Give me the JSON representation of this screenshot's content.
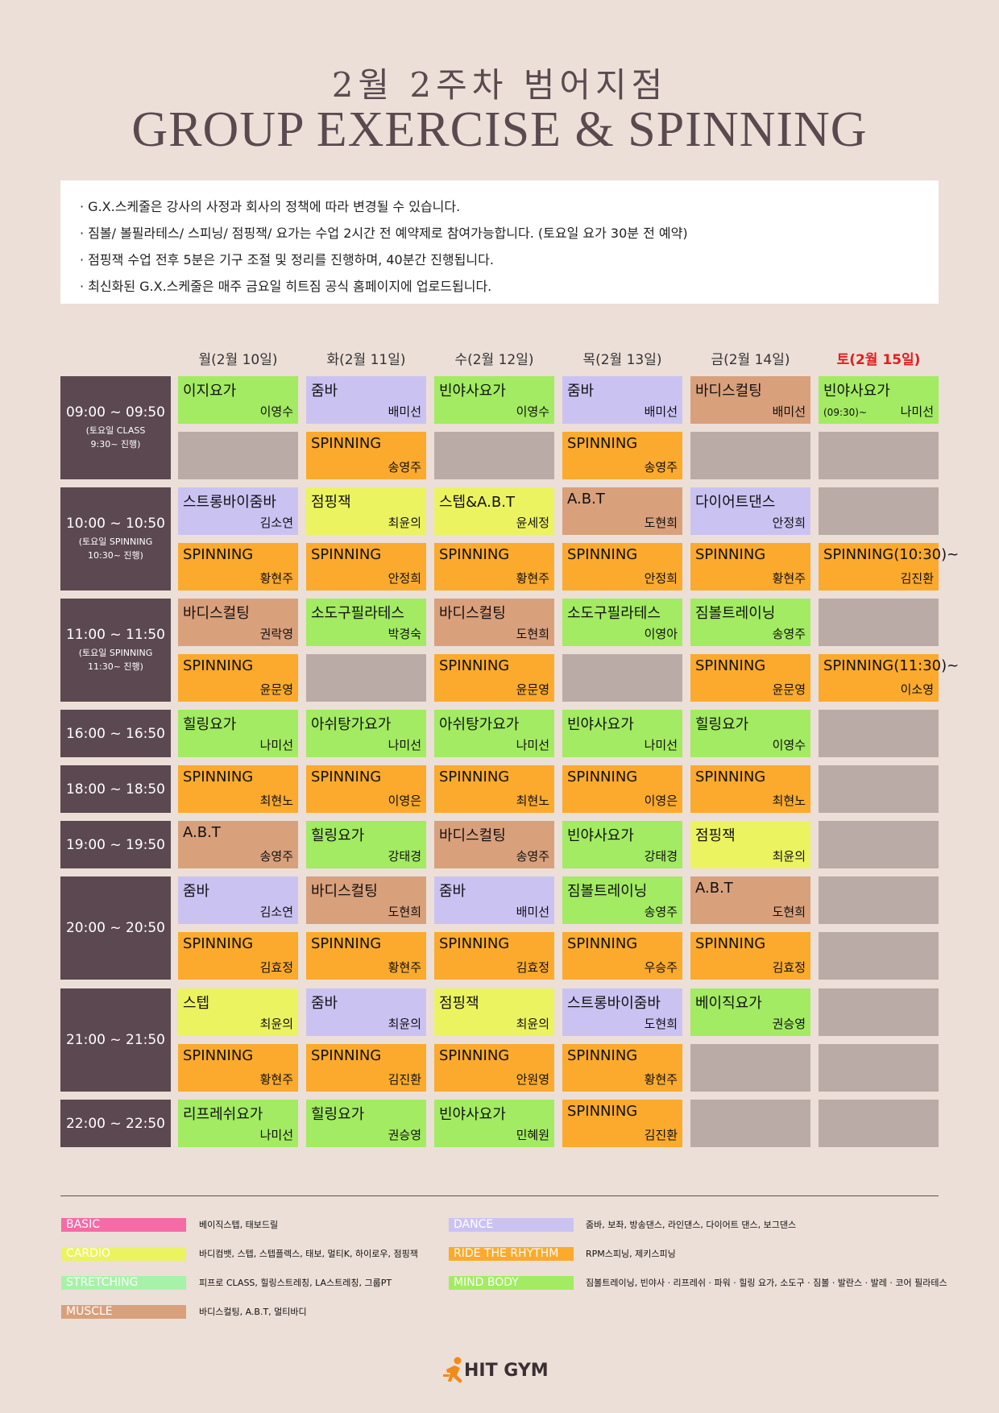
{
  "title_ko": "2월 2주차 범어지점",
  "title_en": "GROUP EXERCISE & SPINNING",
  "notices": [
    "· G.X.스케줄은 강사의 사정과 회사의 정책에 따라 변경될 수 있습니다.",
    "· 짐볼/ 볼필라테스/ 스피닝/ 점핑잭/ 요가는 수업 2시간 전 예약제로 참여가능합니다. (토요일 요가 30분 전 예약)",
    "· 점핑잭 수업 전후 5분은 기구 조절 및 정리를 진행하며, 40분간 진행됩니다.",
    "· 최신화된 G.X.스케줄은 매주 금요일 히트짐 공식 홈페이지에 업로드됩니다."
  ],
  "days": [
    "월(2월 10일)",
    "화(2월 11일)",
    "수(2월 12일)",
    "목(2월 13일)",
    "금(2월 14일)",
    "토(2월 15일)"
  ],
  "times": [
    {
      "label": "09:00 ~ 09:50",
      "note": "(토요일 CLASS\n9:30~ 진행)"
    },
    {
      "label": "10:00 ~ 10:50",
      "note": "(토요일 SPINNING\n10:30~ 진행)"
    },
    {
      "label": "11:00 ~ 11:50",
      "note": "(토요일 SPINNING\n11:30~ 진행)"
    },
    {
      "label": "16:00 ~ 16:50",
      "note": ""
    },
    {
      "label": "18:00 ~ 18:50",
      "note": ""
    },
    {
      "label": "19:00 ~ 19:50",
      "note": ""
    },
    {
      "label": "20:00 ~ 20:50",
      "note": ""
    },
    {
      "label": "21:00 ~ 21:50",
      "note": ""
    },
    {
      "label": "22:00 ~ 22:50",
      "note": ""
    }
  ],
  "schedule": [
    [
      [
        {
          "cls": "이지요가",
          "ins": "이영수",
          "cat": "mind"
        },
        {
          "cls": "줌바",
          "ins": "배미선",
          "cat": "dance"
        },
        {
          "cls": "빈야사요가",
          "ins": "이영수",
          "cat": "mind"
        },
        {
          "cls": "줌바",
          "ins": "배미선",
          "cat": "dance"
        },
        {
          "cls": "바디스컬팅",
          "ins": "배미선",
          "cat": "muscle"
        },
        {
          "cls": "빈야사요가",
          "ins": "나미선",
          "cat": "mind",
          "sub": "(09:30)~"
        }
      ],
      [
        {
          "cat": "empty"
        },
        {
          "cls": "SPINNING",
          "ins": "송영주",
          "cat": "spin"
        },
        {
          "cat": "empty"
        },
        {
          "cls": "SPINNING",
          "ins": "송영주",
          "cat": "spin"
        },
        {
          "cat": "empty"
        },
        {
          "cat": "empty"
        }
      ]
    ],
    [
      [
        {
          "cls": "스트롱바이줌바",
          "ins": "김소연",
          "cat": "dance"
        },
        {
          "cls": "점핑잭",
          "ins": "최윤의",
          "cat": "cardio"
        },
        {
          "cls": "스텝&A.B.T",
          "ins": "윤세정",
          "cat": "cardio"
        },
        {
          "cls": "A.B.T",
          "ins": "도현희",
          "cat": "muscle"
        },
        {
          "cls": "다이어트댄스",
          "ins": "안정희",
          "cat": "dance"
        },
        {
          "cat": "empty"
        }
      ],
      [
        {
          "cls": "SPINNING",
          "ins": "황현주",
          "cat": "spin"
        },
        {
          "cls": "SPINNING",
          "ins": "안정희",
          "cat": "spin"
        },
        {
          "cls": "SPINNING",
          "ins": "황현주",
          "cat": "spin"
        },
        {
          "cls": "SPINNING",
          "ins": "안정희",
          "cat": "spin"
        },
        {
          "cls": "SPINNING",
          "ins": "황현주",
          "cat": "spin"
        },
        {
          "cls": "SPINNING(10:30)~",
          "ins": "김진환",
          "cat": "spin"
        }
      ]
    ],
    [
      [
        {
          "cls": "바디스컬팅",
          "ins": "권락영",
          "cat": "muscle"
        },
        {
          "cls": "소도구필라테스",
          "ins": "박경숙",
          "cat": "mind"
        },
        {
          "cls": "바디스컬팅",
          "ins": "도현희",
          "cat": "muscle"
        },
        {
          "cls": "소도구필라테스",
          "ins": "이영아",
          "cat": "mind"
        },
        {
          "cls": "짐볼트레이닝",
          "ins": "송영주",
          "cat": "mind"
        },
        {
          "cat": "empty"
        }
      ],
      [
        {
          "cls": "SPINNING",
          "ins": "윤문영",
          "cat": "spin"
        },
        {
          "cat": "empty"
        },
        {
          "cls": "SPINNING",
          "ins": "윤문영",
          "cat": "spin"
        },
        {
          "cat": "empty"
        },
        {
          "cls": "SPINNING",
          "ins": "윤문영",
          "cat": "spin"
        },
        {
          "cls": "SPINNING(11:30)~",
          "ins": "이소영",
          "cat": "spin"
        }
      ]
    ],
    [
      [
        {
          "cls": "힐링요가",
          "ins": "나미선",
          "cat": "mind"
        },
        {
          "cls": "아쉬탕가요가",
          "ins": "나미선",
          "cat": "mind"
        },
        {
          "cls": "아쉬탕가요가",
          "ins": "나미선",
          "cat": "mind"
        },
        {
          "cls": "빈야사요가",
          "ins": "나미선",
          "cat": "mind"
        },
        {
          "cls": "힐링요가",
          "ins": "이영수",
          "cat": "mind"
        },
        {
          "cat": "empty"
        }
      ]
    ],
    [
      [
        {
          "cls": "SPINNING",
          "ins": "최현노",
          "cat": "spin"
        },
        {
          "cls": "SPINNING",
          "ins": "이영은",
          "cat": "spin"
        },
        {
          "cls": "SPINNING",
          "ins": "최현노",
          "cat": "spin"
        },
        {
          "cls": "SPINNING",
          "ins": "이영은",
          "cat": "spin"
        },
        {
          "cls": "SPINNING",
          "ins": "최현노",
          "cat": "spin"
        },
        {
          "cat": "empty"
        }
      ]
    ],
    [
      [
        {
          "cls": "A.B.T",
          "ins": "송영주",
          "cat": "muscle"
        },
        {
          "cls": "힐링요가",
          "ins": "강태경",
          "cat": "mind"
        },
        {
          "cls": "바디스컬팅",
          "ins": "송영주",
          "cat": "muscle"
        },
        {
          "cls": "빈야사요가",
          "ins": "강태경",
          "cat": "mind"
        },
        {
          "cls": "점핑잭",
          "ins": "최윤의",
          "cat": "cardio"
        },
        {
          "cat": "empty"
        }
      ]
    ],
    [
      [
        {
          "cls": "줌바",
          "ins": "김소연",
          "cat": "dance"
        },
        {
          "cls": "바디스컬팅",
          "ins": "도현희",
          "cat": "muscle"
        },
        {
          "cls": "줌바",
          "ins": "배미선",
          "cat": "dance"
        },
        {
          "cls": "짐볼트레이닝",
          "ins": "송영주",
          "cat": "mind"
        },
        {
          "cls": "A.B.T",
          "ins": "도현희",
          "cat": "muscle"
        },
        {
          "cat": "empty"
        }
      ],
      [
        {
          "cls": "SPINNING",
          "ins": "김효정",
          "cat": "spin"
        },
        {
          "cls": "SPINNING",
          "ins": "황현주",
          "cat": "spin"
        },
        {
          "cls": "SPINNING",
          "ins": "김효정",
          "cat": "spin"
        },
        {
          "cls": "SPINNING",
          "ins": "우승주",
          "cat": "spin"
        },
        {
          "cls": "SPINNING",
          "ins": "김효정",
          "cat": "spin"
        },
        {
          "cat": "empty"
        }
      ]
    ],
    [
      [
        {
          "cls": "스텝",
          "ins": "최윤의",
          "cat": "cardio"
        },
        {
          "cls": "줌바",
          "ins": "최윤의",
          "cat": "dance"
        },
        {
          "cls": "점핑잭",
          "ins": "최윤의",
          "cat": "cardio"
        },
        {
          "cls": "스트롱바이줌바",
          "ins": "도현희",
          "cat": "dance"
        },
        {
          "cls": "베이직요가",
          "ins": "권승영",
          "cat": "mind"
        },
        {
          "cat": "empty"
        }
      ],
      [
        {
          "cls": "SPINNING",
          "ins": "황현주",
          "cat": "spin"
        },
        {
          "cls": "SPINNING",
          "ins": "김진환",
          "cat": "spin"
        },
        {
          "cls": "SPINNING",
          "ins": "안원영",
          "cat": "spin"
        },
        {
          "cls": "SPINNING",
          "ins": "황현주",
          "cat": "spin"
        },
        {
          "cat": "empty"
        },
        {
          "cat": "empty"
        }
      ]
    ],
    [
      [
        {
          "cls": "리프레쉬요가",
          "ins": "나미선",
          "cat": "mind"
        },
        {
          "cls": "힐링요가",
          "ins": "권승영",
          "cat": "mind"
        },
        {
          "cls": "빈야사요가",
          "ins": "민혜원",
          "cat": "mind"
        },
        {
          "cls": "SPINNING",
          "ins": "김진환",
          "cat": "spin"
        },
        {
          "cat": "empty"
        },
        {
          "cat": "empty"
        }
      ]
    ]
  ],
  "legend": [
    {
      "label": "BASIC",
      "desc": "베이직스텝, 태보드릴",
      "color": "#f46ba5"
    },
    {
      "label": "CARDIO",
      "desc": "바디컴뱃, 스텝, 스텝플렉스, 태보, 멀티K, 하이로우, 점핑잭",
      "color": "#ecf360"
    },
    {
      "label": "STRETCHING",
      "desc": "피프로 CLASS, 힐링스트레칭, LA스트레칭, 그룹PT",
      "color": "#a6f2a8"
    },
    {
      "label": "MUSCLE",
      "desc": "바디스컬팅, A.B.T, 멀티바디",
      "color": "#d9a07c"
    },
    {
      "label": "DANCE",
      "desc": "줌바, 보좌, 방송댄스, 라인댄스, 다이어트 댄스, 보그댄스",
      "color": "#cac3f2"
    },
    {
      "label": "RIDE THE RHYTHM",
      "desc": "RPM스피닝, 제키스피닝",
      "color": "#fbaa2d"
    },
    {
      "label": "MIND BODY",
      "desc": "짐볼트레이닝, 빈야사 · 리프레쉬 · 파워 · 힐링 요가, 소도구 · 짐볼 · 발란스 · 발레 · 코어 필라테스",
      "color": "#a2eb62"
    }
  ],
  "logo_text": "HIT GYM",
  "colors": {
    "background": "#ecdfd7",
    "time_block": "#5b4850",
    "dance": "#cac3f2",
    "spin": "#fbaa2d",
    "mind": "#a2eb62",
    "cardio": "#ecf360",
    "muscle": "#d9a07c",
    "empty": "#baaba6",
    "saturday_header": "#e01e1e"
  }
}
